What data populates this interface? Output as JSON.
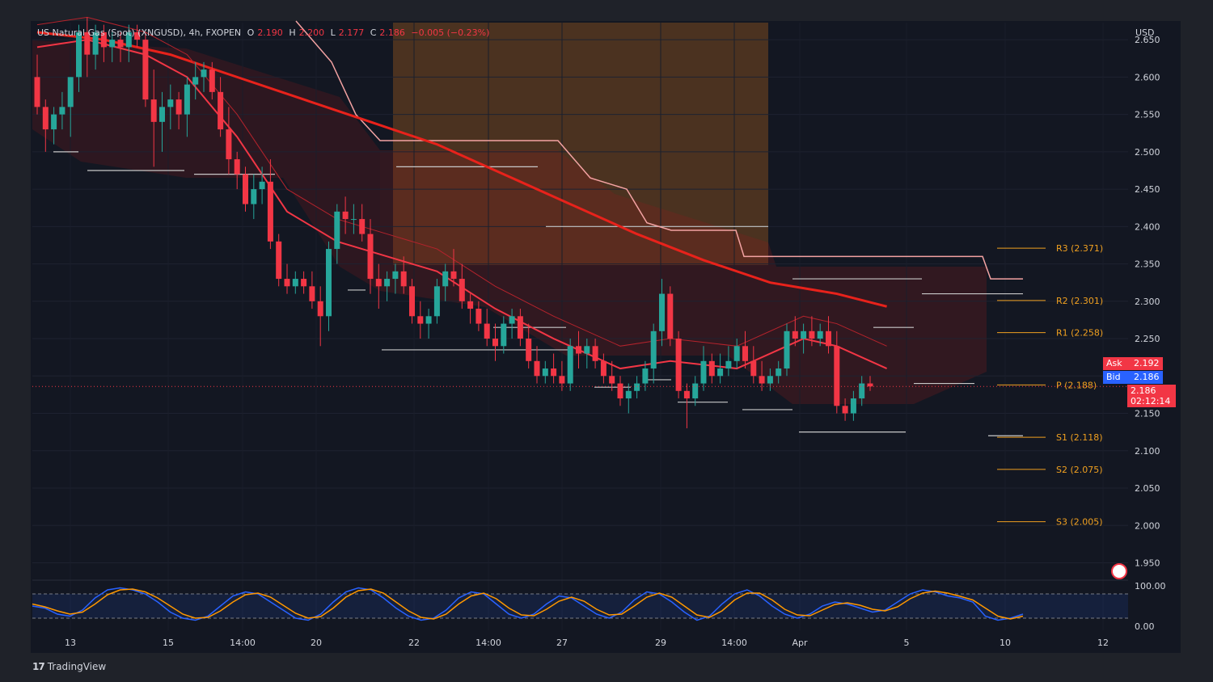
{
  "header": {
    "symbol": "US Natural Gas (Spot) (XNGUSD), 4h, FXOPEN",
    "o_label": "O",
    "o_value": "2.190",
    "h_label": "H",
    "h_value": "2.200",
    "l_label": "L",
    "l_value": "2.177",
    "c_label": "C",
    "c_value": "2.186",
    "change": "−0.005 (−0.23%)"
  },
  "currency": "USD",
  "footer": {
    "logo": "17",
    "brand": "TradingView"
  },
  "price_tags": {
    "ask_label": "Ask",
    "ask_value": "2.192",
    "bid_label": "Bid",
    "bid_value": "2.186",
    "last_value": "2.186",
    "countdown": "02:12:14"
  },
  "colors": {
    "background": "#131722",
    "bull": "#26a69a",
    "bear": "#f23645",
    "ema_fast": "#f23645",
    "ema_slow": "#e8221b",
    "pivot": "#f0a020",
    "stoch_k": "#2962ff",
    "stoch_d": "#ff9800"
  },
  "chart_data": {
    "type": "candlestick",
    "title": "US Natural Gas (Spot) (XNGUSD), 4h, FXOPEN",
    "ylabel": "USD",
    "ylim": [
      1.93,
      2.675
    ],
    "y_ticks": [
      "2.650",
      "2.600",
      "2.550",
      "2.500",
      "2.450",
      "2.400",
      "2.350",
      "2.300",
      "2.250",
      "2.200",
      "2.150",
      "2.100",
      "2.050",
      "2.000",
      "1.950"
    ],
    "x_ticks": [
      "13",
      "15",
      "14:00",
      "20",
      "22",
      "14:00",
      "27",
      "29",
      "14:00",
      "Apr",
      "5",
      "10",
      "12"
    ],
    "candles": [
      [
        2.6,
        2.63,
        2.55,
        2.56
      ],
      [
        2.56,
        2.57,
        2.5,
        2.53
      ],
      [
        2.53,
        2.56,
        2.51,
        2.55
      ],
      [
        2.55,
        2.58,
        2.53,
        2.56
      ],
      [
        2.56,
        2.6,
        2.52,
        2.6
      ],
      [
        2.6,
        2.67,
        2.58,
        2.66
      ],
      [
        2.66,
        2.68,
        2.6,
        2.63
      ],
      [
        2.63,
        2.67,
        2.61,
        2.66
      ],
      [
        2.66,
        2.67,
        2.62,
        2.64
      ],
      [
        2.64,
        2.66,
        2.62,
        2.65
      ],
      [
        2.65,
        2.66,
        2.62,
        2.64
      ],
      [
        2.64,
        2.67,
        2.62,
        2.66
      ],
      [
        2.66,
        2.67,
        2.64,
        2.65
      ],
      [
        2.65,
        2.66,
        2.56,
        2.57
      ],
      [
        2.57,
        2.61,
        2.48,
        2.54
      ],
      [
        2.54,
        2.58,
        2.5,
        2.56
      ],
      [
        2.56,
        2.59,
        2.53,
        2.57
      ],
      [
        2.57,
        2.58,
        2.53,
        2.55
      ],
      [
        2.55,
        2.6,
        2.52,
        2.59
      ],
      [
        2.59,
        2.62,
        2.57,
        2.6
      ],
      [
        2.6,
        2.62,
        2.58,
        2.61
      ],
      [
        2.61,
        2.62,
        2.57,
        2.58
      ],
      [
        2.58,
        2.6,
        2.52,
        2.53
      ],
      [
        2.53,
        2.56,
        2.47,
        2.49
      ],
      [
        2.49,
        2.5,
        2.45,
        2.47
      ],
      [
        2.47,
        2.48,
        2.42,
        2.43
      ],
      [
        2.43,
        2.47,
        2.41,
        2.45
      ],
      [
        2.45,
        2.48,
        2.43,
        2.46
      ],
      [
        2.46,
        2.49,
        2.37,
        2.38
      ],
      [
        2.38,
        2.39,
        2.32,
        2.33
      ],
      [
        2.33,
        2.35,
        2.31,
        2.32
      ],
      [
        2.32,
        2.34,
        2.31,
        2.33
      ],
      [
        2.33,
        2.34,
        2.31,
        2.32
      ],
      [
        2.32,
        2.34,
        2.29,
        2.3
      ],
      [
        2.3,
        2.32,
        2.24,
        2.28
      ],
      [
        2.28,
        2.38,
        2.26,
        2.37
      ],
      [
        2.37,
        2.43,
        2.35,
        2.42
      ],
      [
        2.42,
        2.44,
        2.39,
        2.41
      ],
      [
        2.41,
        2.43,
        2.39,
        2.41
      ],
      [
        2.41,
        2.43,
        2.38,
        2.39
      ],
      [
        2.39,
        2.41,
        2.31,
        2.33
      ],
      [
        2.33,
        2.35,
        2.29,
        2.32
      ],
      [
        2.32,
        2.34,
        2.3,
        2.33
      ],
      [
        2.33,
        2.35,
        2.31,
        2.34
      ],
      [
        2.34,
        2.36,
        2.31,
        2.32
      ],
      [
        2.32,
        2.33,
        2.27,
        2.28
      ],
      [
        2.28,
        2.3,
        2.25,
        2.27
      ],
      [
        2.27,
        2.29,
        2.25,
        2.28
      ],
      [
        2.28,
        2.33,
        2.27,
        2.32
      ],
      [
        2.32,
        2.35,
        2.3,
        2.34
      ],
      [
        2.34,
        2.37,
        2.32,
        2.33
      ],
      [
        2.33,
        2.35,
        2.29,
        2.3
      ],
      [
        2.3,
        2.31,
        2.27,
        2.29
      ],
      [
        2.29,
        2.3,
        2.26,
        2.27
      ],
      [
        2.27,
        2.29,
        2.24,
        2.25
      ],
      [
        2.25,
        2.27,
        2.22,
        2.24
      ],
      [
        2.24,
        2.28,
        2.23,
        2.27
      ],
      [
        2.27,
        2.29,
        2.25,
        2.28
      ],
      [
        2.28,
        2.29,
        2.24,
        2.25
      ],
      [
        2.25,
        2.27,
        2.21,
        2.22
      ],
      [
        2.22,
        2.24,
        2.19,
        2.2
      ],
      [
        2.2,
        2.22,
        2.19,
        2.21
      ],
      [
        2.21,
        2.23,
        2.19,
        2.2
      ],
      [
        2.2,
        2.22,
        2.18,
        2.19
      ],
      [
        2.19,
        2.25,
        2.18,
        2.24
      ],
      [
        2.24,
        2.26,
        2.21,
        2.23
      ],
      [
        2.23,
        2.25,
        2.21,
        2.24
      ],
      [
        2.24,
        2.25,
        2.21,
        2.22
      ],
      [
        2.22,
        2.23,
        2.19,
        2.2
      ],
      [
        2.2,
        2.22,
        2.18,
        2.19
      ],
      [
        2.19,
        2.2,
        2.16,
        2.17
      ],
      [
        2.17,
        2.19,
        2.15,
        2.18
      ],
      [
        2.18,
        2.2,
        2.17,
        2.19
      ],
      [
        2.19,
        2.22,
        2.18,
        2.21
      ],
      [
        2.21,
        2.27,
        2.19,
        2.26
      ],
      [
        2.26,
        2.33,
        2.24,
        2.31
      ],
      [
        2.31,
        2.32,
        2.24,
        2.25
      ],
      [
        2.25,
        2.26,
        2.17,
        2.18
      ],
      [
        2.18,
        2.19,
        2.13,
        2.17
      ],
      [
        2.17,
        2.2,
        2.16,
        2.19
      ],
      [
        2.19,
        2.24,
        2.18,
        2.22
      ],
      [
        2.22,
        2.23,
        2.19,
        2.2
      ],
      [
        2.2,
        2.23,
        2.19,
        2.21
      ],
      [
        2.21,
        2.24,
        2.2,
        2.22
      ],
      [
        2.22,
        2.25,
        2.21,
        2.24
      ],
      [
        2.24,
        2.26,
        2.21,
        2.22
      ],
      [
        2.22,
        2.24,
        2.19,
        2.2
      ],
      [
        2.2,
        2.22,
        2.18,
        2.19
      ],
      [
        2.19,
        2.21,
        2.18,
        2.2
      ],
      [
        2.2,
        2.22,
        2.19,
        2.21
      ],
      [
        2.21,
        2.27,
        2.2,
        2.26
      ],
      [
        2.26,
        2.28,
        2.24,
        2.25
      ],
      [
        2.25,
        2.27,
        2.23,
        2.26
      ],
      [
        2.26,
        2.28,
        2.24,
        2.25
      ],
      [
        2.25,
        2.27,
        2.24,
        2.26
      ],
      [
        2.26,
        2.28,
        2.23,
        2.24
      ],
      [
        2.24,
        2.26,
        2.15,
        2.16
      ],
      [
        2.16,
        2.17,
        2.14,
        2.15
      ],
      [
        2.15,
        2.18,
        2.14,
        2.17
      ],
      [
        2.17,
        2.2,
        2.16,
        2.19
      ],
      [
        2.19,
        2.2,
        2.18,
        2.186
      ]
    ],
    "ema_fast": [
      [
        0,
        2.64
      ],
      [
        6,
        2.65
      ],
      [
        13,
        2.63
      ],
      [
        18,
        2.6
      ],
      [
        24,
        2.52
      ],
      [
        30,
        2.42
      ],
      [
        36,
        2.38
      ],
      [
        42,
        2.36
      ],
      [
        48,
        2.34
      ],
      [
        55,
        2.29
      ],
      [
        62,
        2.25
      ],
      [
        70,
        2.21
      ],
      [
        76,
        2.22
      ],
      [
        84,
        2.21
      ],
      [
        92,
        2.25
      ],
      [
        96,
        2.24
      ],
      [
        102,
        2.21
      ]
    ],
    "ema_slow": [
      [
        0,
        2.66
      ],
      [
        8,
        2.65
      ],
      [
        16,
        2.63
      ],
      [
        24,
        2.6
      ],
      [
        32,
        2.57
      ],
      [
        40,
        2.54
      ],
      [
        48,
        2.51
      ],
      [
        56,
        2.47
      ],
      [
        64,
        2.43
      ],
      [
        72,
        2.39
      ],
      [
        80,
        2.355
      ],
      [
        88,
        2.325
      ],
      [
        96,
        2.31
      ],
      [
        102,
        2.293
      ]
    ],
    "pivots": [
      {
        "label": "R3 (2.371)",
        "value": 2.371
      },
      {
        "label": "R2 (2.301)",
        "value": 2.301
      },
      {
        "label": "R1 (2.258)",
        "value": 2.258
      },
      {
        "label": "P (2.188)",
        "value": 2.188
      },
      {
        "label": "S1 (2.118)",
        "value": 2.118
      },
      {
        "label": "S2 (2.075)",
        "value": 2.075
      },
      {
        "label": "S3 (2.005)",
        "value": 2.005
      }
    ],
    "oscillator": {
      "ylim": [
        0,
        100
      ],
      "y_ticks": [
        "100.00",
        "0.00"
      ],
      "bands": [
        80,
        20
      ],
      "k": [
        50,
        45,
        30,
        25,
        40,
        70,
        90,
        95,
        90,
        80,
        60,
        35,
        20,
        15,
        25,
        50,
        75,
        85,
        80,
        60,
        40,
        20,
        15,
        30,
        60,
        85,
        95,
        90,
        70,
        45,
        25,
        15,
        20,
        40,
        70,
        85,
        80,
        55,
        30,
        20,
        30,
        55,
        75,
        70,
        50,
        30,
        20,
        35,
        65,
        85,
        80,
        60,
        35,
        15,
        25,
        55,
        80,
        90,
        75,
        50,
        30,
        20,
        30,
        50,
        60,
        55,
        45,
        35,
        40,
        60,
        80,
        90,
        85,
        75,
        70,
        60,
        25,
        15,
        20,
        30
      ],
      "d": [
        55,
        48,
        38,
        30,
        35,
        55,
        78,
        90,
        92,
        85,
        70,
        50,
        30,
        20,
        22,
        38,
        60,
        78,
        82,
        72,
        52,
        32,
        20,
        24,
        45,
        72,
        88,
        92,
        82,
        60,
        38,
        22,
        18,
        30,
        55,
        75,
        82,
        68,
        45,
        28,
        26,
        42,
        62,
        72,
        62,
        42,
        28,
        30,
        50,
        72,
        82,
        72,
        50,
        28,
        22,
        38,
        65,
        82,
        82,
        65,
        42,
        28,
        26,
        40,
        54,
        58,
        52,
        42,
        38,
        48,
        68,
        82,
        87,
        82,
        74,
        65,
        45,
        25,
        18,
        25
      ]
    }
  }
}
